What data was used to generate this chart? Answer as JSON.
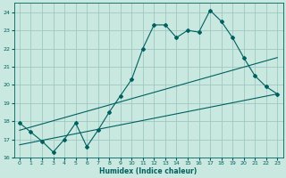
{
  "xlabel": "Humidex (Indice chaleur)",
  "xlim": [
    -0.5,
    23.5
  ],
  "ylim": [
    16,
    24.5
  ],
  "yticks": [
    16,
    17,
    18,
    19,
    20,
    21,
    22,
    23,
    24
  ],
  "xticks": [
    0,
    1,
    2,
    3,
    4,
    5,
    6,
    7,
    8,
    9,
    10,
    11,
    12,
    13,
    14,
    15,
    16,
    17,
    18,
    19,
    20,
    21,
    22,
    23
  ],
  "bg_color": "#c8e8e0",
  "line_color": "#006060",
  "grid_color": "#a0c8c0",
  "line1_x": [
    0,
    1,
    2,
    3,
    4,
    5,
    6,
    7,
    8,
    9,
    10,
    11,
    12,
    13,
    14,
    15,
    16,
    17,
    18,
    19,
    20,
    21,
    22,
    23
  ],
  "line1_y": [
    17.9,
    17.4,
    16.9,
    16.3,
    17.0,
    17.9,
    16.6,
    17.5,
    18.5,
    19.4,
    20.3,
    22.0,
    23.3,
    23.3,
    22.6,
    23.0,
    22.9,
    24.1,
    23.5,
    22.6,
    21.5,
    20.5,
    19.9,
    19.5
  ],
  "line2_x": [
    0,
    23
  ],
  "line2_y": [
    17.5,
    21.5
  ],
  "line3_x": [
    0,
    23
  ],
  "line3_y": [
    16.7,
    19.5
  ]
}
